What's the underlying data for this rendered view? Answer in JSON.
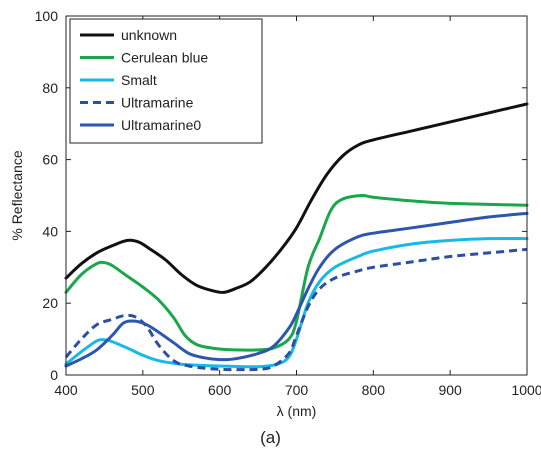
{
  "caption": "(a)",
  "chart_data": {
    "type": "line",
    "xlabel": "λ (nm)",
    "ylabel": "% Reflectance",
    "xlim": [
      400,
      1000
    ],
    "ylim": [
      0,
      100
    ],
    "xticks": [
      400,
      500,
      600,
      700,
      800,
      900,
      1000
    ],
    "yticks": [
      0,
      20,
      40,
      60,
      80,
      100
    ],
    "grid": false,
    "legend_position": "top-left",
    "series": [
      {
        "name": "unknown",
        "color": "#111111",
        "dash": "solid",
        "points": [
          [
            400,
            27
          ],
          [
            420,
            31
          ],
          [
            440,
            34
          ],
          [
            460,
            36
          ],
          [
            480,
            37.5
          ],
          [
            495,
            37
          ],
          [
            510,
            35
          ],
          [
            530,
            32
          ],
          [
            550,
            28
          ],
          [
            570,
            25
          ],
          [
            590,
            23.5
          ],
          [
            605,
            23
          ],
          [
            620,
            24
          ],
          [
            640,
            26
          ],
          [
            660,
            30
          ],
          [
            680,
            35
          ],
          [
            700,
            41
          ],
          [
            720,
            49
          ],
          [
            740,
            56
          ],
          [
            760,
            61
          ],
          [
            780,
            64
          ],
          [
            800,
            65.5
          ],
          [
            850,
            68
          ],
          [
            900,
            70.5
          ],
          [
            950,
            73
          ],
          [
            1000,
            75.5
          ]
        ]
      },
      {
        "name": "Cerulean blue",
        "color": "#1aa64a",
        "dash": "solid",
        "points": [
          [
            400,
            23
          ],
          [
            420,
            28
          ],
          [
            440,
            31
          ],
          [
            450,
            31.3
          ],
          [
            460,
            30.5
          ],
          [
            480,
            27.5
          ],
          [
            500,
            24.5
          ],
          [
            520,
            21
          ],
          [
            540,
            16
          ],
          [
            555,
            11
          ],
          [
            570,
            8.5
          ],
          [
            590,
            7.5
          ],
          [
            620,
            7
          ],
          [
            650,
            7
          ],
          [
            670,
            7.5
          ],
          [
            690,
            10
          ],
          [
            700,
            15
          ],
          [
            715,
            30
          ],
          [
            730,
            38
          ],
          [
            745,
            46
          ],
          [
            760,
            49
          ],
          [
            785,
            50
          ],
          [
            800,
            49.5
          ],
          [
            850,
            48.5
          ],
          [
            900,
            47.8
          ],
          [
            1000,
            47.3
          ]
        ]
      },
      {
        "name": "Smalt",
        "color": "#17b9e6",
        "dash": "solid",
        "points": [
          [
            400,
            3
          ],
          [
            420,
            6.5
          ],
          [
            440,
            9.5
          ],
          [
            450,
            9.8
          ],
          [
            460,
            9.3
          ],
          [
            480,
            7.5
          ],
          [
            500,
            5.5
          ],
          [
            520,
            4
          ],
          [
            550,
            3
          ],
          [
            600,
            2.5
          ],
          [
            650,
            2.3
          ],
          [
            675,
            3
          ],
          [
            690,
            5
          ],
          [
            700,
            10
          ],
          [
            715,
            20
          ],
          [
            730,
            26
          ],
          [
            750,
            30
          ],
          [
            780,
            33
          ],
          [
            800,
            34.5
          ],
          [
            850,
            36.5
          ],
          [
            900,
            37.5
          ],
          [
            950,
            38
          ],
          [
            1000,
            38
          ]
        ]
      },
      {
        "name": "Ultramarine",
        "color": "#2a4fa3",
        "dash": "dashed",
        "points": [
          [
            400,
            5
          ],
          [
            420,
            10
          ],
          [
            440,
            14
          ],
          [
            460,
            15.5
          ],
          [
            475,
            16.5
          ],
          [
            490,
            16.2
          ],
          [
            505,
            13.5
          ],
          [
            520,
            8.5
          ],
          [
            540,
            4
          ],
          [
            560,
            2.5
          ],
          [
            600,
            1.6
          ],
          [
            650,
            1.6
          ],
          [
            670,
            2.5
          ],
          [
            690,
            6
          ],
          [
            700,
            11
          ],
          [
            715,
            19
          ],
          [
            730,
            24
          ],
          [
            750,
            27
          ],
          [
            780,
            29
          ],
          [
            800,
            30
          ],
          [
            850,
            31.5
          ],
          [
            900,
            33
          ],
          [
            950,
            34
          ],
          [
            1000,
            35
          ]
        ]
      },
      {
        "name": "Ultramarine0",
        "color": "#2d56ad",
        "dash": "solid",
        "points": [
          [
            400,
            2.5
          ],
          [
            420,
            4.5
          ],
          [
            440,
            7
          ],
          [
            460,
            11
          ],
          [
            475,
            14.5
          ],
          [
            490,
            15
          ],
          [
            505,
            14
          ],
          [
            520,
            12
          ],
          [
            540,
            9
          ],
          [
            560,
            6
          ],
          [
            580,
            4.8
          ],
          [
            600,
            4.3
          ],
          [
            620,
            4.5
          ],
          [
            650,
            6
          ],
          [
            670,
            8
          ],
          [
            690,
            13
          ],
          [
            700,
            17
          ],
          [
            715,
            24
          ],
          [
            730,
            30
          ],
          [
            750,
            35
          ],
          [
            780,
            38.5
          ],
          [
            800,
            39.5
          ],
          [
            850,
            41
          ],
          [
            900,
            42.5
          ],
          [
            950,
            44
          ],
          [
            1000,
            45
          ]
        ]
      }
    ]
  }
}
